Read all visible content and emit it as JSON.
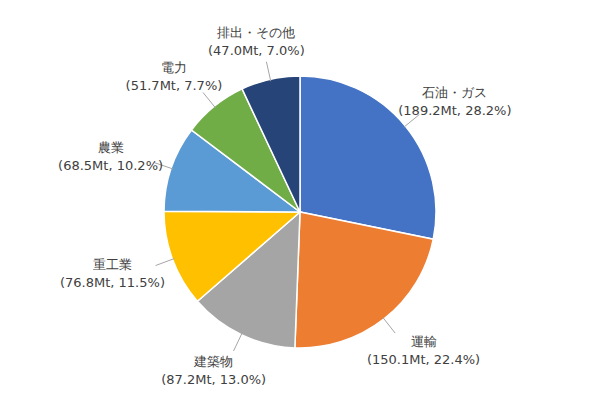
{
  "chart_data": {
    "type": "pie",
    "categories": [
      "石油・ガス",
      "運輸",
      "建築物",
      "重工業",
      "農業",
      "電力",
      "排出・その他"
    ],
    "values": [
      28.2,
      22.4,
      13.0,
      11.5,
      10.2,
      7.7,
      7.0
    ],
    "value_labels": [
      "(189.2Mt, 28.2%)",
      "(150.1Mt, 22.4%)",
      "(87.2Mt, 13.0%)",
      "(76.8Mt, 11.5%)",
      "(68.5Mt, 10.2%)",
      "(51.7Mt, 7.7%)",
      "(47.0Mt, 7.0%)"
    ],
    "colors": [
      "#4472c4",
      "#ed7d31",
      "#a5a5a5",
      "#ffc000",
      "#5b9bd5",
      "#70ad47",
      "#264478"
    ],
    "data_labels": true
  }
}
